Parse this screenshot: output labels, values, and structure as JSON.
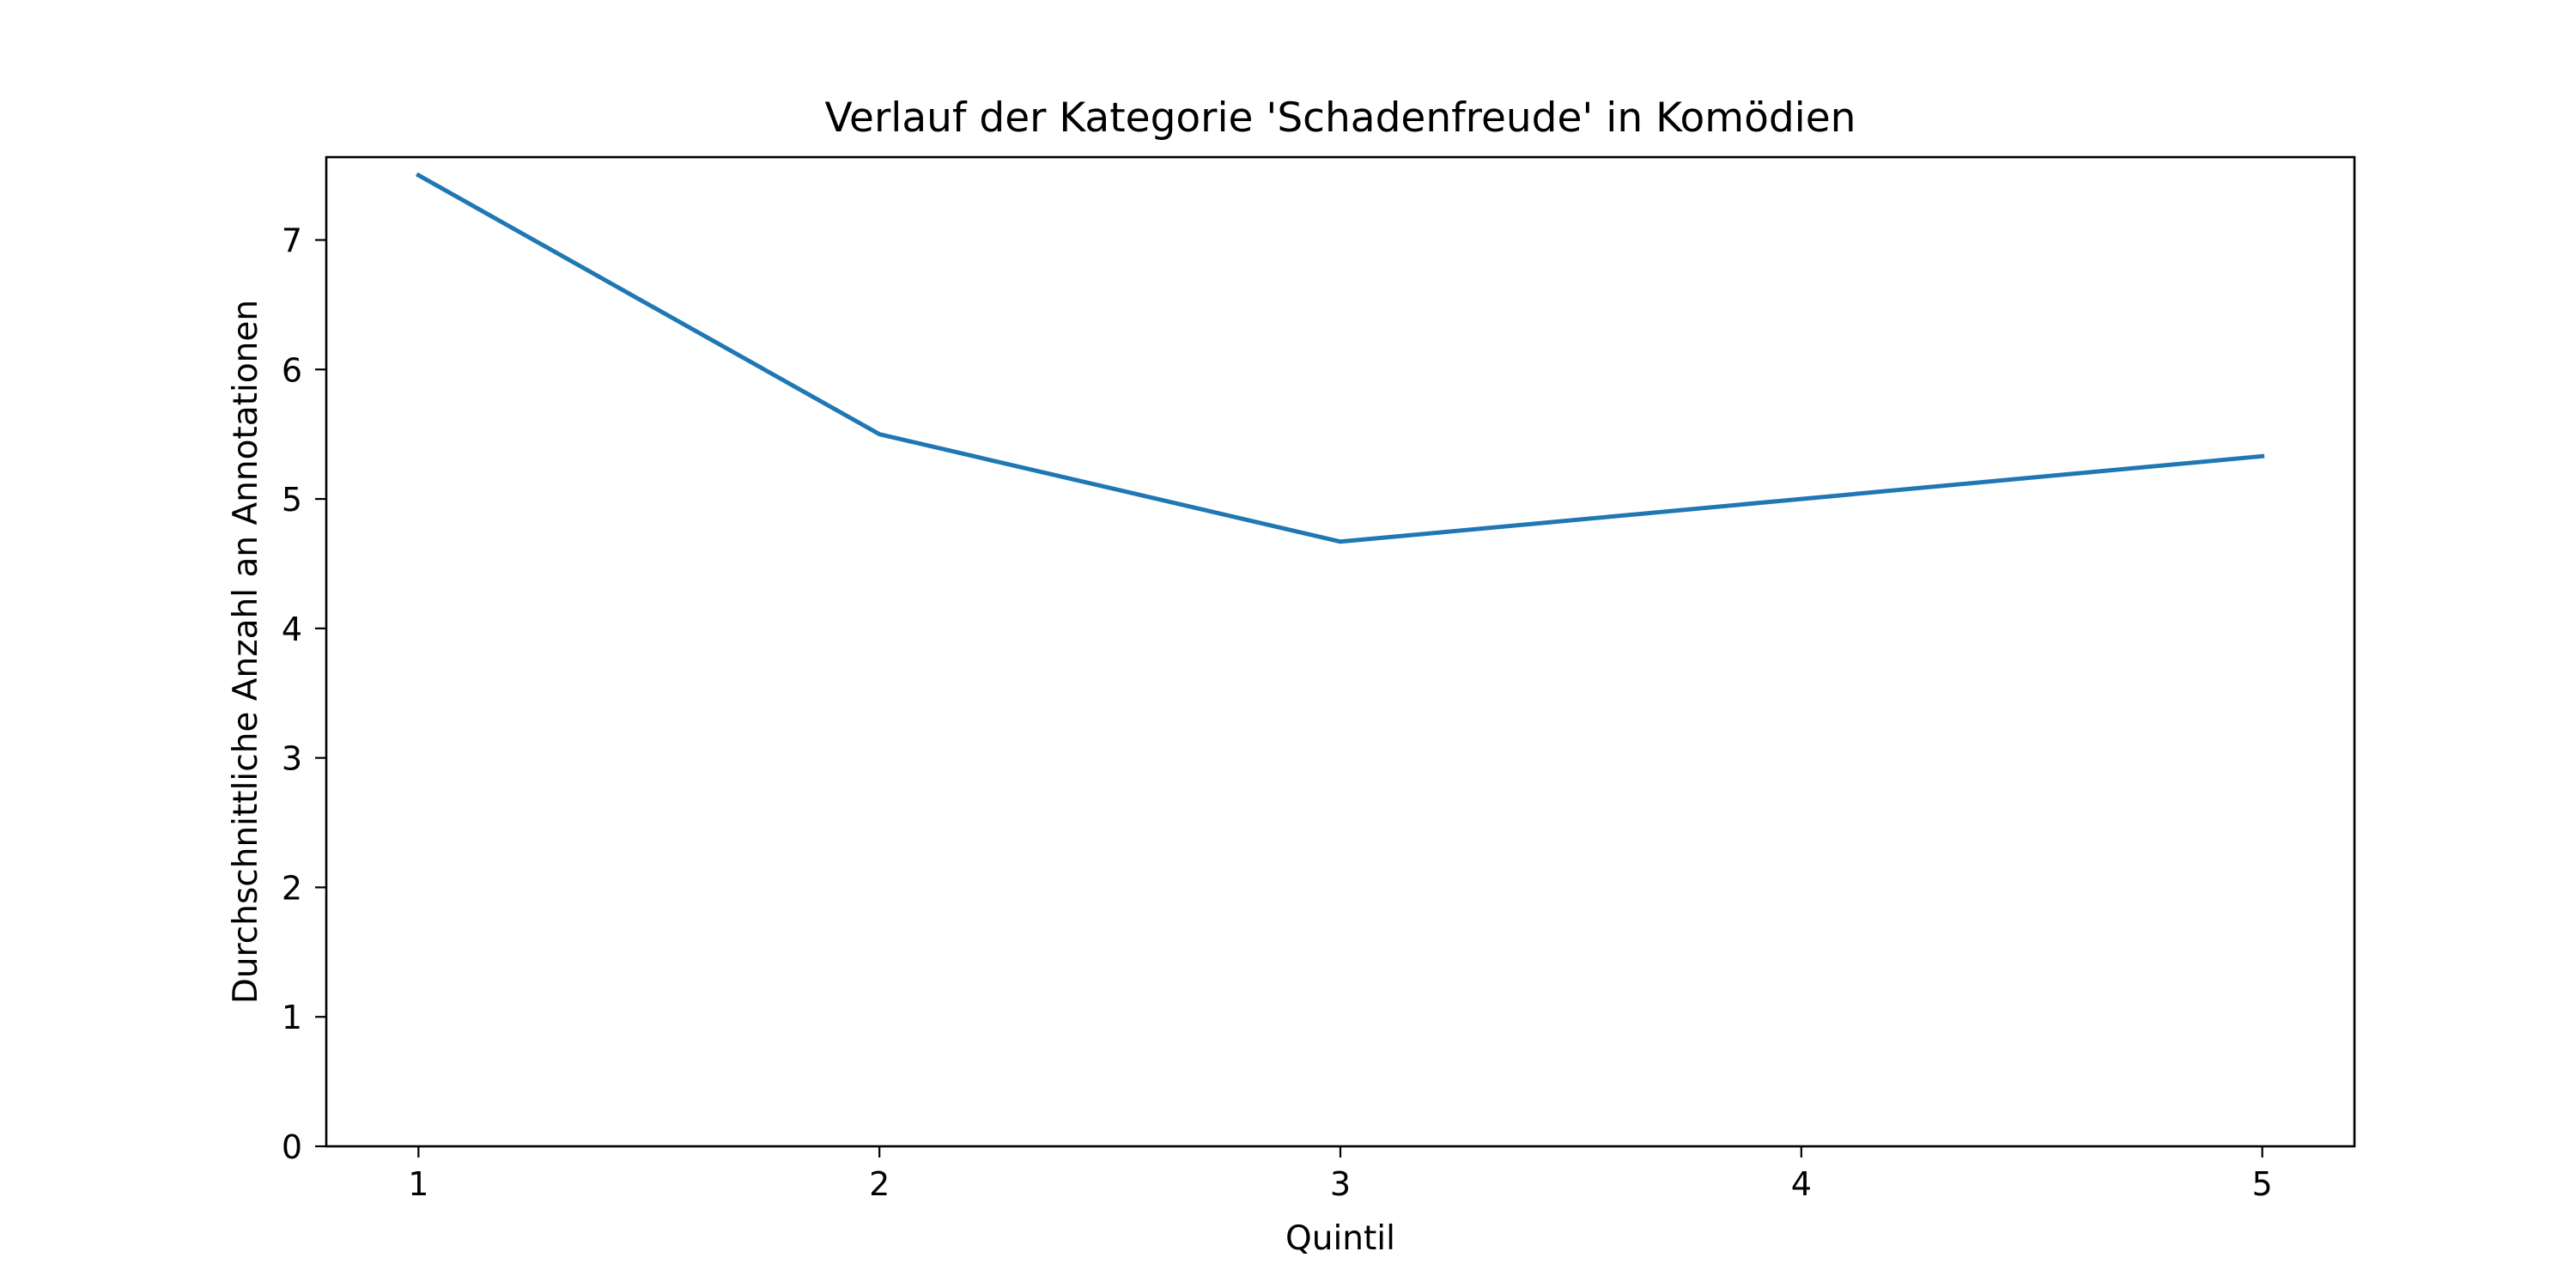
{
  "chart_data": {
    "type": "line",
    "title": "Verlauf der Kategorie 'Schadenfreude' in Komödien",
    "xlabel": "Quintil",
    "ylabel": "Durchschnittliche Anzahl an Annotationen",
    "x": [
      1,
      2,
      3,
      4,
      5
    ],
    "x_tick_labels": [
      "1",
      "2",
      "3",
      "4",
      "5"
    ],
    "y_ticks": [
      0,
      1,
      2,
      3,
      4,
      5,
      6,
      7
    ],
    "y_tick_labels": [
      "0",
      "1",
      "2",
      "3",
      "4",
      "5",
      "6",
      "7"
    ],
    "xlim": [
      0.8,
      5.2
    ],
    "ylim": [
      0,
      7.64
    ],
    "grid": false,
    "series": [
      {
        "values": [
          7.5,
          5.5,
          4.67,
          5.0,
          5.33
        ],
        "color": "#1f77b4"
      }
    ]
  }
}
